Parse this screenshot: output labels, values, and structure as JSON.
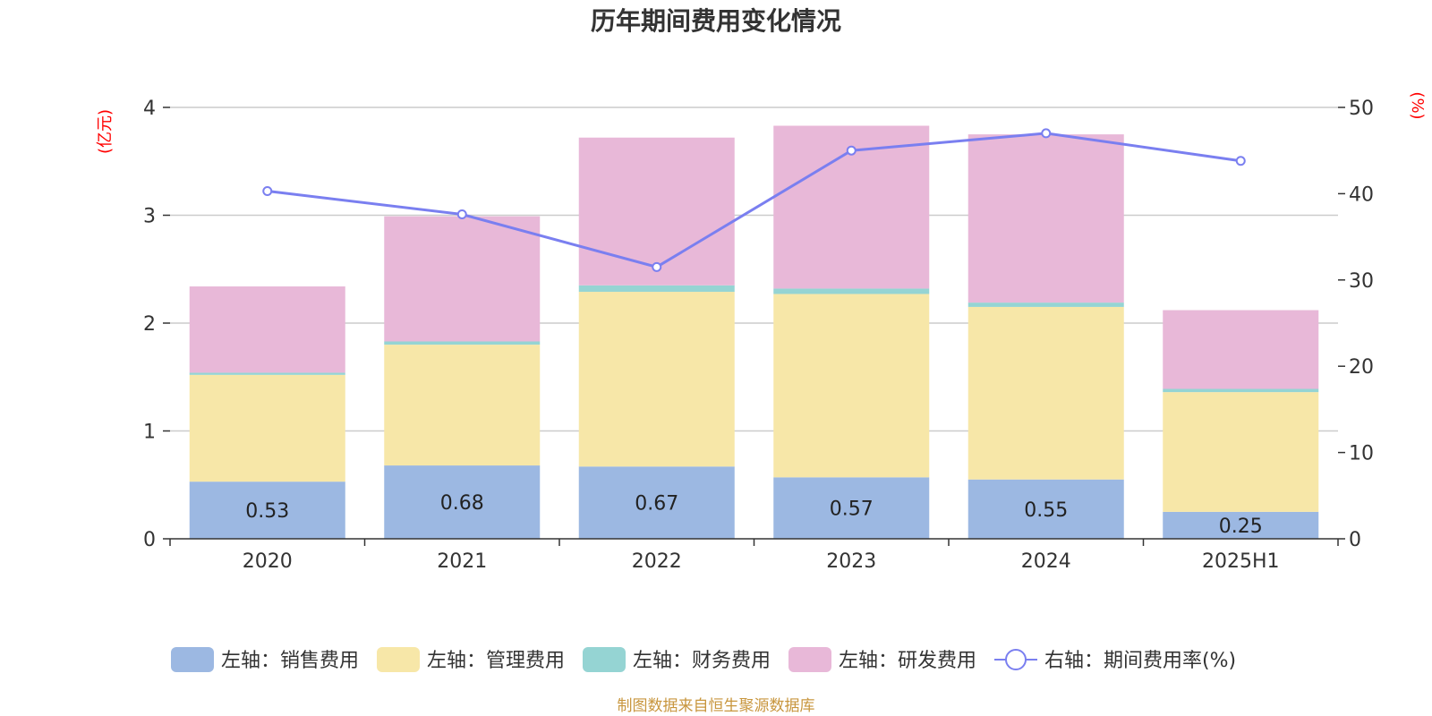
{
  "chart_data": {
    "type": "bar",
    "title": "历年期间费用变化情况",
    "categories": [
      "2020",
      "2021",
      "2022",
      "2023",
      "2024",
      "2025H1"
    ],
    "left_axis": {
      "unit_label": "(亿元)",
      "ylim": [
        0,
        4
      ],
      "ticks": [
        "0",
        "1",
        "2",
        "3",
        "4"
      ]
    },
    "right_axis": {
      "unit_label": "(%)",
      "ylim": [
        0,
        50
      ],
      "ticks": [
        "0",
        "10",
        "20",
        "30",
        "40",
        "50"
      ]
    },
    "grid": true,
    "legend_position": "bottom",
    "stacked": true,
    "series": [
      {
        "name": "左轴：销售费用",
        "axis": "left",
        "kind": "bar",
        "color": "#9cb8e2",
        "values": [
          0.53,
          0.68,
          0.67,
          0.57,
          0.55,
          0.25
        ],
        "labels": [
          "0.53",
          "0.68",
          "0.67",
          "0.57",
          "0.55",
          "0.25"
        ]
      },
      {
        "name": "左轴：管理费用",
        "axis": "left",
        "kind": "bar",
        "color": "#f7e7a8",
        "values": [
          0.99,
          1.12,
          1.62,
          1.7,
          1.6,
          1.11
        ]
      },
      {
        "name": "左轴：财务费用",
        "axis": "left",
        "kind": "bar",
        "color": "#95d4d3",
        "values": [
          0.02,
          0.03,
          0.06,
          0.05,
          0.04,
          0.03
        ]
      },
      {
        "name": "左轴：研发费用",
        "axis": "left",
        "kind": "bar",
        "color": "#e8b8d8",
        "values": [
          0.8,
          1.16,
          1.37,
          1.51,
          1.56,
          0.73
        ]
      },
      {
        "name": "右轴：期间费用率(%)",
        "axis": "right",
        "kind": "line",
        "color": "#7a7ff0",
        "values": [
          40.3,
          37.6,
          31.5,
          45.0,
          47.0,
          43.8
        ]
      }
    ],
    "source": "制图数据来自恒生聚源数据库"
  }
}
